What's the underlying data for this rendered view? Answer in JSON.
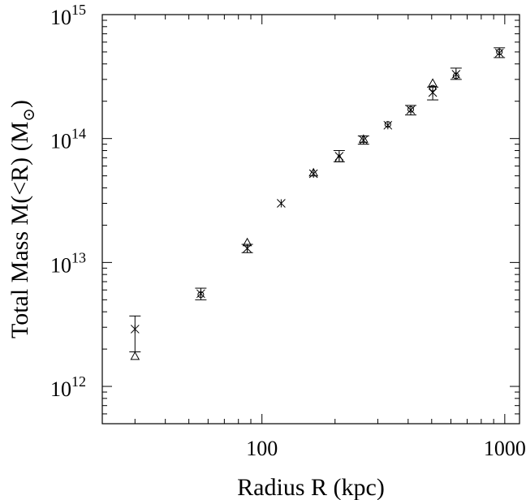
{
  "chart_data": {
    "type": "scatter",
    "title": "",
    "xlabel": "Radius R (kpc)",
    "ylabel_main": "Total Mass M(<R) (M",
    "ylabel_sub": "⊙",
    "ylabel_close": ")",
    "xscale": "log",
    "yscale": "log",
    "xlim": [
      22,
      1150
    ],
    "ylim": [
      500000000000.0,
      1000000000000000.0
    ],
    "grid": false,
    "x_ticks": [
      {
        "value": 100,
        "label": "100"
      },
      {
        "value": 1000,
        "label": "1000"
      }
    ],
    "y_ticks": [
      {
        "value": 1000000000000.0,
        "base": "10",
        "exp": "12"
      },
      {
        "value": 10000000000000.0,
        "base": "10",
        "exp": "13"
      },
      {
        "value": 100000000000000.0,
        "base": "10",
        "exp": "14"
      },
      {
        "value": 1000000000000000.0,
        "base": "10",
        "exp": "15"
      }
    ],
    "series": [
      {
        "marker": "cross",
        "points": [
          {
            "x": 30,
            "y": 2900000000000.0,
            "lo": 1900000000000.0,
            "hi": 3700000000000.0
          },
          {
            "x": 56,
            "y": 5600000000000.0,
            "lo": 5000000000000.0,
            "hi": 6200000000000.0
          },
          {
            "x": 87,
            "y": 13000000000000.0,
            "lo": 12000000000000.0,
            "hi": 14000000000000.0
          },
          {
            "x": 120,
            "y": 30000000000000.0
          },
          {
            "x": 163,
            "y": 52000000000000.0
          },
          {
            "x": 208,
            "y": 72000000000000.0,
            "lo": 65000000000000.0,
            "hi": 80000000000000.0
          },
          {
            "x": 262,
            "y": 97000000000000.0,
            "lo": 90000000000000.0,
            "hi": 105000000000000.0
          },
          {
            "x": 330,
            "y": 128000000000000.0
          },
          {
            "x": 410,
            "y": 170000000000000.0,
            "lo": 155000000000000.0,
            "hi": 185000000000000.0
          },
          {
            "x": 505,
            "y": 235000000000000.0,
            "lo": 205000000000000.0,
            "hi": 260000000000000.0
          },
          {
            "x": 630,
            "y": 330000000000000.0,
            "lo": 300000000000000.0,
            "hi": 370000000000000.0
          },
          {
            "x": 950,
            "y": 490000000000000.0,
            "lo": 450000000000000.0,
            "hi": 540000000000000.0
          }
        ]
      },
      {
        "marker": "triangle",
        "points": [
          {
            "x": 30,
            "y": 1750000000000.0
          },
          {
            "x": 87,
            "y": 14500000000000.0
          },
          {
            "x": 163,
            "y": 53000000000000.0
          },
          {
            "x": 208,
            "y": 69000000000000.0
          },
          {
            "x": 262,
            "y": 99000000000000.0
          },
          {
            "x": 505,
            "y": 280000000000000.0
          }
        ]
      },
      {
        "marker": "circle",
        "points": [
          {
            "x": 56,
            "y": 5500000000000.0
          },
          {
            "x": 330,
            "y": 130000000000000.0
          },
          {
            "x": 410,
            "y": 172000000000000.0
          },
          {
            "x": 505,
            "y": 255000000000000.0
          },
          {
            "x": 630,
            "y": 320000000000000.0
          },
          {
            "x": 950,
            "y": 500000000000000.0
          }
        ]
      }
    ]
  }
}
